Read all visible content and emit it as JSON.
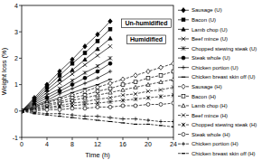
{
  "chart_data": {
    "type": "line",
    "x_label": "Time (h)",
    "y_label": "Weight loss (%)",
    "annotations": [
      "Un-humidified",
      "Humidified"
    ],
    "x": [
      0,
      2,
      4,
      6,
      8,
      10,
      12,
      14,
      16,
      18,
      20,
      22,
      24
    ],
    "xlim": [
      0,
      24
    ],
    "xticks": [
      0,
      4,
      8,
      12,
      16,
      20,
      24
    ],
    "ylim": [
      -1,
      4
    ],
    "yticks": [
      -1,
      0,
      1,
      2,
      3,
      4
    ],
    "grid": false,
    "legend": "right",
    "series": [
      {
        "name": "Sausage (U)",
        "color": "#000000",
        "marker": "diamond",
        "line_style": "solid",
        "values": [
          0,
          0.5,
          1.0,
          1.5,
          1.95,
          2.45,
          2.9,
          3.4,
          null,
          null,
          null,
          null,
          null
        ]
      },
      {
        "name": "Bacon (U)",
        "color": "#000000",
        "marker": "square",
        "line_style": "solid",
        "values": [
          0,
          0.45,
          0.9,
          1.35,
          1.8,
          2.2,
          2.65,
          3.1,
          null,
          null,
          null,
          null,
          null
        ]
      },
      {
        "name": "Lamb chop (U)",
        "color": "#000000",
        "marker": "triangle",
        "line_style": "solid",
        "values": [
          0,
          0.4,
          0.8,
          1.2,
          1.55,
          1.95,
          2.35,
          2.75,
          null,
          null,
          null,
          null,
          null
        ]
      },
      {
        "name": "Beef mince (U)",
        "color": "#000000",
        "marker": "x",
        "line_style": "solid",
        "values": [
          0,
          0.35,
          0.7,
          1.05,
          1.4,
          1.75,
          2.1,
          2.45,
          null,
          null,
          null,
          null,
          null
        ]
      },
      {
        "name": "Chopped stewing steak (U)",
        "color": "#000000",
        "marker": "star",
        "line_style": "solid",
        "values": [
          0,
          0.3,
          0.6,
          0.85,
          1.15,
          1.45,
          1.7,
          2.0,
          null,
          null,
          null,
          null,
          null
        ]
      },
      {
        "name": "Steak whole (U)",
        "color": "#000000",
        "marker": "circle",
        "line_style": "solid",
        "values": [
          0,
          0.25,
          0.5,
          0.75,
          1.0,
          1.25,
          1.5,
          1.8,
          null,
          null,
          null,
          null,
          null
        ]
      },
      {
        "name": "Chicken portion (U)",
        "color": "#000000",
        "marker": "plus",
        "line_style": "solid",
        "values": [
          0,
          0.2,
          0.4,
          0.65,
          0.85,
          1.05,
          1.25,
          1.5,
          null,
          null,
          null,
          null,
          null
        ]
      },
      {
        "name": "Chicken breast skin off (U)",
        "color": "#000000",
        "marker": "dash",
        "line_style": "solid",
        "values": [
          0,
          0.15,
          0.35,
          0.5,
          0.7,
          0.85,
          1.0,
          1.2,
          null,
          null,
          null,
          null,
          null
        ]
      },
      {
        "name": "Sausage (H)",
        "color": "#000000",
        "marker": "open-diamond",
        "line_style": "dashed",
        "values": [
          0,
          0.15,
          0.3,
          0.45,
          0.6,
          0.75,
          0.9,
          1.05,
          1.2,
          1.35,
          1.5,
          1.65,
          1.8
        ]
      },
      {
        "name": "Bacon (H)",
        "color": "#000000",
        "marker": "open-square",
        "line_style": "dashed",
        "values": [
          0,
          0.1,
          0.25,
          0.35,
          0.5,
          0.6,
          0.75,
          0.85,
          1.0,
          1.1,
          1.25,
          1.35,
          1.5
        ]
      },
      {
        "name": "Lamb chop (H)",
        "color": "#000000",
        "marker": "open-triangle",
        "line_style": "dashed",
        "values": [
          0,
          0.1,
          0.2,
          0.3,
          0.4,
          0.5,
          0.6,
          0.7,
          0.8,
          0.9,
          1.0,
          1.1,
          1.2
        ]
      },
      {
        "name": "Beef mince (H)",
        "color": "#000000",
        "marker": "x",
        "line_style": "dashed",
        "values": [
          0,
          0.05,
          0.15,
          0.2,
          0.3,
          0.35,
          0.45,
          0.5,
          0.6,
          0.65,
          0.75,
          0.8,
          0.9
        ]
      },
      {
        "name": "Chopped stewing steak (H)",
        "color": "#000000",
        "marker": "star",
        "line_style": "dashed",
        "values": [
          0,
          0.05,
          0.1,
          0.15,
          0.2,
          0.25,
          0.3,
          0.35,
          0.4,
          0.45,
          0.5,
          0.55,
          0.6
        ]
      },
      {
        "name": "Steak whole (H)",
        "color": "#000000",
        "marker": "open-circle",
        "line_style": "dashed",
        "values": [
          0,
          0,
          0.05,
          0.05,
          0.1,
          0.1,
          0.15,
          0.15,
          0.2,
          0.2,
          0.25,
          0.25,
          0.3
        ]
      },
      {
        "name": "Chicken portion (H)",
        "color": "#000000",
        "marker": "plus",
        "line_style": "dashed",
        "values": [
          0,
          -0.05,
          -0.1,
          -0.1,
          -0.15,
          -0.2,
          -0.2,
          -0.25,
          -0.3,
          -0.3,
          -0.35,
          -0.4,
          -0.4
        ]
      },
      {
        "name": "Chicken breast skin off (H)",
        "color": "#000000",
        "marker": "dash",
        "line_style": "dashed",
        "values": [
          0,
          -0.1,
          -0.15,
          -0.2,
          -0.25,
          -0.3,
          -0.35,
          -0.4,
          -0.45,
          -0.5,
          -0.5,
          -0.55,
          -0.6
        ]
      }
    ]
  }
}
